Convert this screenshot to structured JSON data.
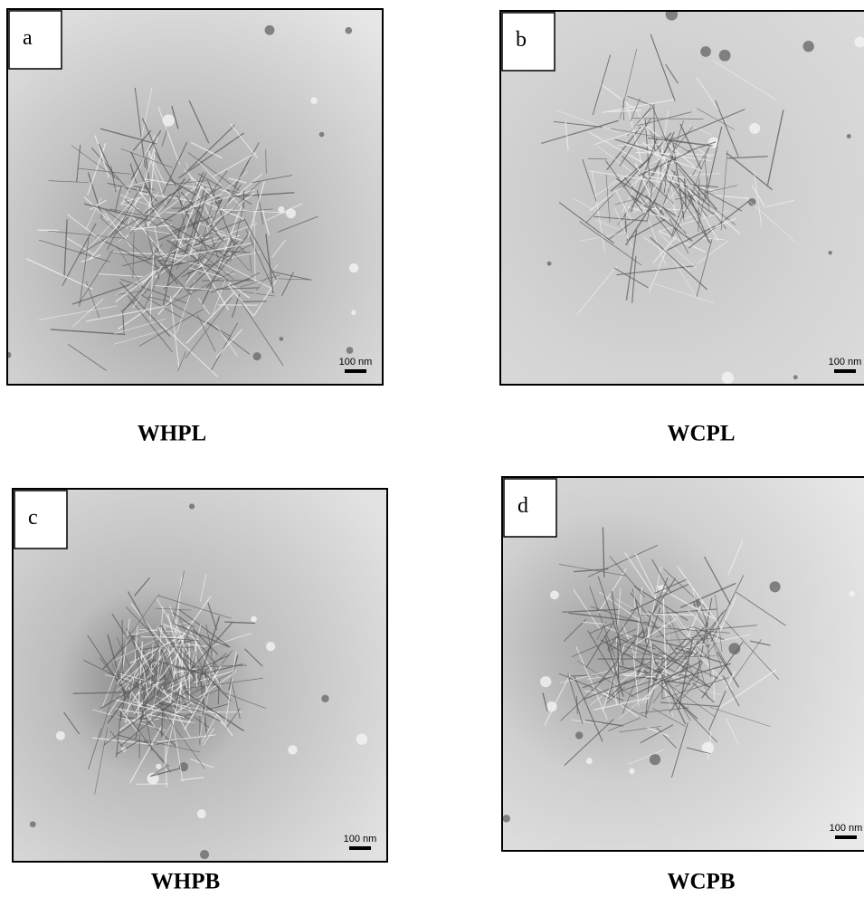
{
  "panels": [
    {
      "label": "a",
      "caption": "WHPL",
      "scale_bar": "100 nm"
    },
    {
      "label": "b",
      "caption": "WCPL",
      "scale_bar": "100 nm"
    },
    {
      "label": "c",
      "caption": "WHPB",
      "scale_bar": "100 nm"
    },
    {
      "label": "d",
      "caption": "WCPB",
      "scale_bar": "100 nm"
    }
  ]
}
